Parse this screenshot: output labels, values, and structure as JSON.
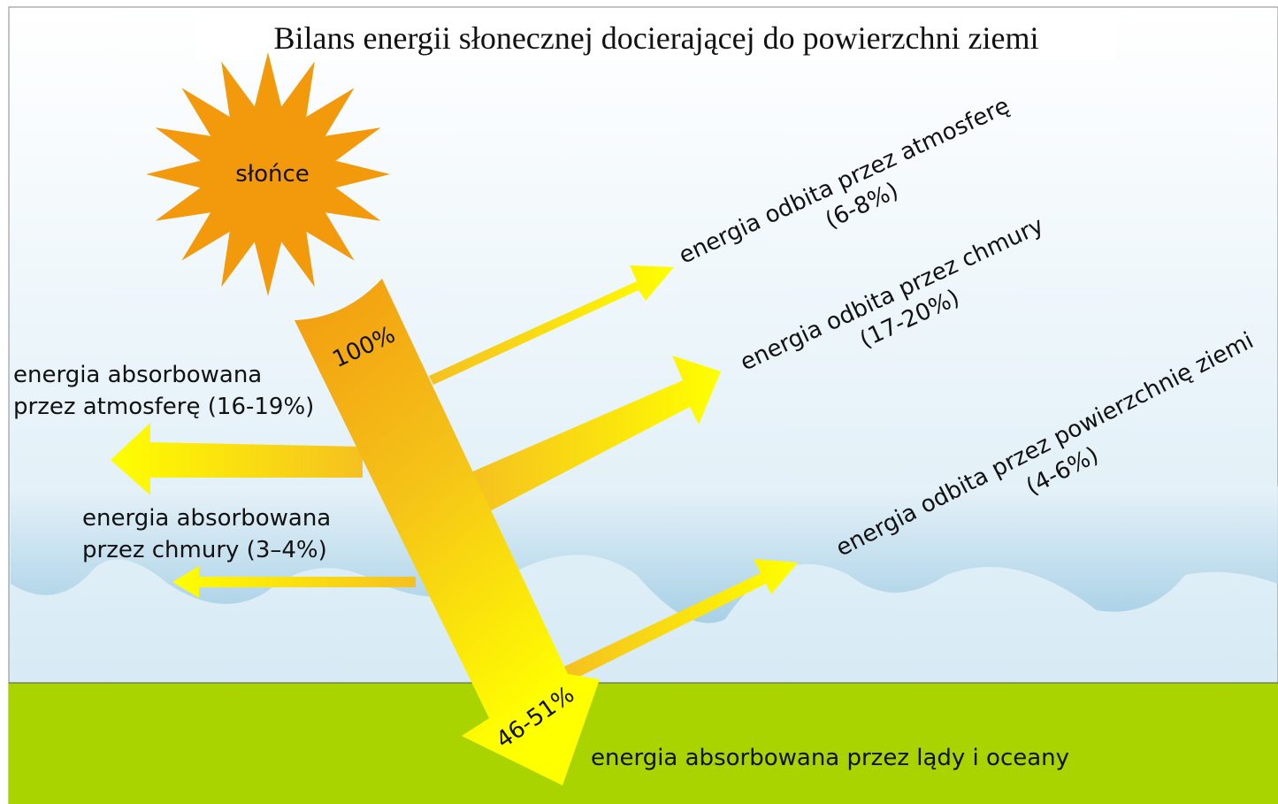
{
  "title": "Bilans energii słonecznej docierającej do powierzchni ziemi",
  "sun": "słońce",
  "incoming": "100%",
  "surface_absorbed_percent": "46-51%",
  "reflected_atmosphere": {
    "label": "energia odbita przez atmosferę",
    "percent": "(6-8%)"
  },
  "reflected_clouds": {
    "label": "energia odbita przez chmury",
    "percent": "(17-20%)"
  },
  "reflected_surface": {
    "label": "energia odbita przez powierzchnię ziemi",
    "percent": "(4-6%)"
  },
  "absorbed_atmosphere": {
    "line1": "energia absorbowana",
    "line2": "przez atmosferę (16-19%)"
  },
  "absorbed_clouds": {
    "line1": "energia absorbowana",
    "line2": "przez chmury (3–4%)"
  },
  "absorbed_land": "energia absorbowana przez lądy i oceany"
}
